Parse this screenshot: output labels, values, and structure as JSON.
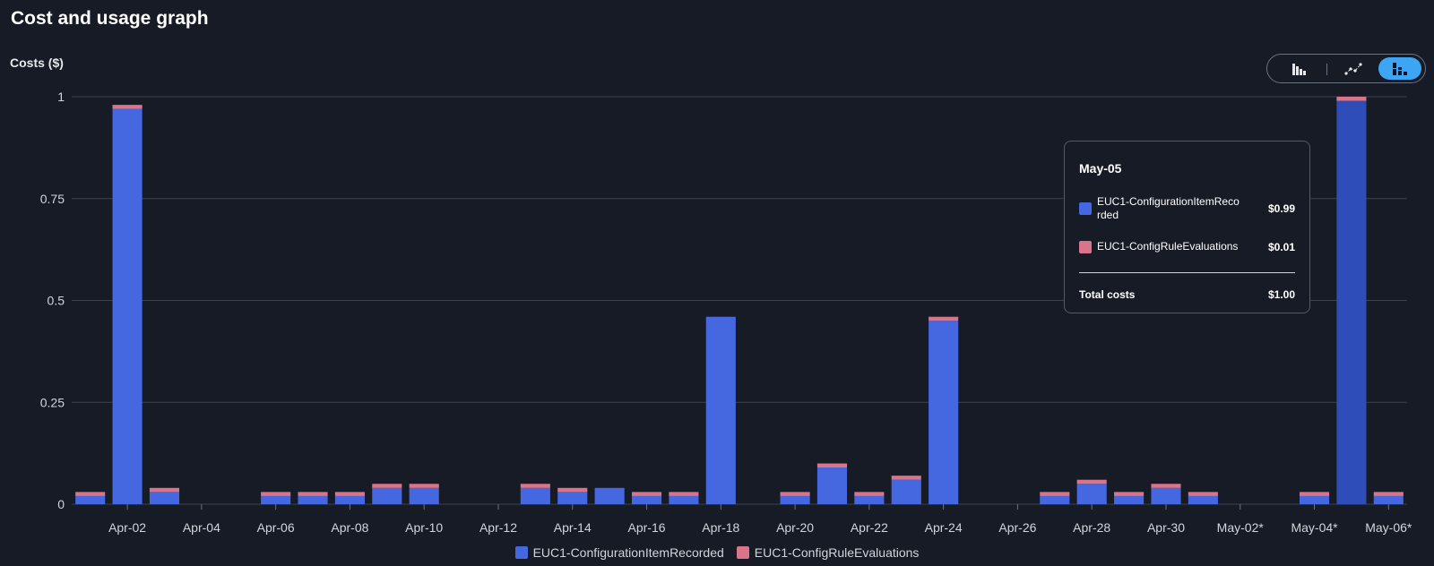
{
  "page": {
    "title": "Cost and usage graph"
  },
  "chart_toggle": {
    "icons": [
      "bar-chart-icon",
      "line-chart-icon",
      "stacked-bar-chart-icon"
    ],
    "active": 2
  },
  "colors": {
    "series1": "#4567e0",
    "series2": "#d9748a",
    "highlight": "#2e4db8",
    "grid": "#3b4250"
  },
  "chart_data": {
    "type": "bar",
    "stacked": true,
    "ylabel": "Costs ($)",
    "ylim": [
      0,
      1
    ],
    "yticks": [
      0,
      0.25,
      0.5,
      0.75,
      1
    ],
    "ytick_labels": [
      "0",
      "0.25",
      "0.5",
      "0.75",
      "1"
    ],
    "grid": true,
    "legend_position": "bottom",
    "categories": [
      "Apr-01",
      "Apr-02",
      "Apr-03",
      "Apr-04",
      "Apr-05",
      "Apr-06",
      "Apr-07",
      "Apr-08",
      "Apr-09",
      "Apr-10",
      "Apr-11",
      "Apr-12",
      "Apr-13",
      "Apr-14",
      "Apr-15",
      "Apr-16",
      "Apr-17",
      "Apr-18",
      "Apr-19",
      "Apr-20",
      "Apr-21",
      "Apr-22",
      "Apr-23",
      "Apr-24",
      "Apr-25",
      "Apr-26",
      "Apr-27",
      "Apr-28",
      "Apr-29",
      "Apr-30",
      "May-01",
      "May-02*",
      "May-03",
      "May-04*",
      "May-05",
      "May-06*"
    ],
    "xtick_labels": [
      "Apr-02",
      "Apr-04",
      "Apr-06",
      "Apr-08",
      "Apr-10",
      "Apr-12",
      "Apr-14",
      "Apr-16",
      "Apr-18",
      "Apr-20",
      "Apr-22",
      "Apr-24",
      "Apr-26",
      "Apr-28",
      "Apr-30",
      "May-02*",
      "May-04*",
      "May-06*"
    ],
    "series": [
      {
        "name": "EUC1-ConfigurationItemRecorded",
        "values": [
          0.02,
          0.97,
          0.03,
          0,
          0,
          0.02,
          0.02,
          0.02,
          0.04,
          0.04,
          0,
          0,
          0.04,
          0.03,
          0.04,
          0.02,
          0.02,
          0.46,
          0,
          0.02,
          0.09,
          0.02,
          0.06,
          0.45,
          0,
          0,
          0.02,
          0.05,
          0.02,
          0.04,
          0.02,
          0,
          0,
          0.02,
          0.99,
          0.02
        ]
      },
      {
        "name": "EUC1-ConfigRuleEvaluations",
        "values": [
          0.01,
          0.01,
          0.01,
          0,
          0,
          0.01,
          0.01,
          0.01,
          0.01,
          0.01,
          0,
          0,
          0.01,
          0.01,
          0,
          0.01,
          0.01,
          0,
          0,
          0.01,
          0.01,
          0.01,
          0.01,
          0.01,
          0,
          0,
          0.01,
          0.01,
          0.01,
          0.01,
          0.01,
          0,
          0,
          0.01,
          0.01,
          0.01
        ]
      }
    ],
    "highlighted_category": "May-05"
  },
  "tooltip": {
    "title": "May-05",
    "rows": [
      {
        "name": "EUC1-ConfigurationItemRecorded",
        "value": "$0.99"
      },
      {
        "name": "EUC1-ConfigRuleEvaluations",
        "value": "$0.01"
      }
    ],
    "total_label": "Total costs",
    "total_value": "$1.00"
  }
}
